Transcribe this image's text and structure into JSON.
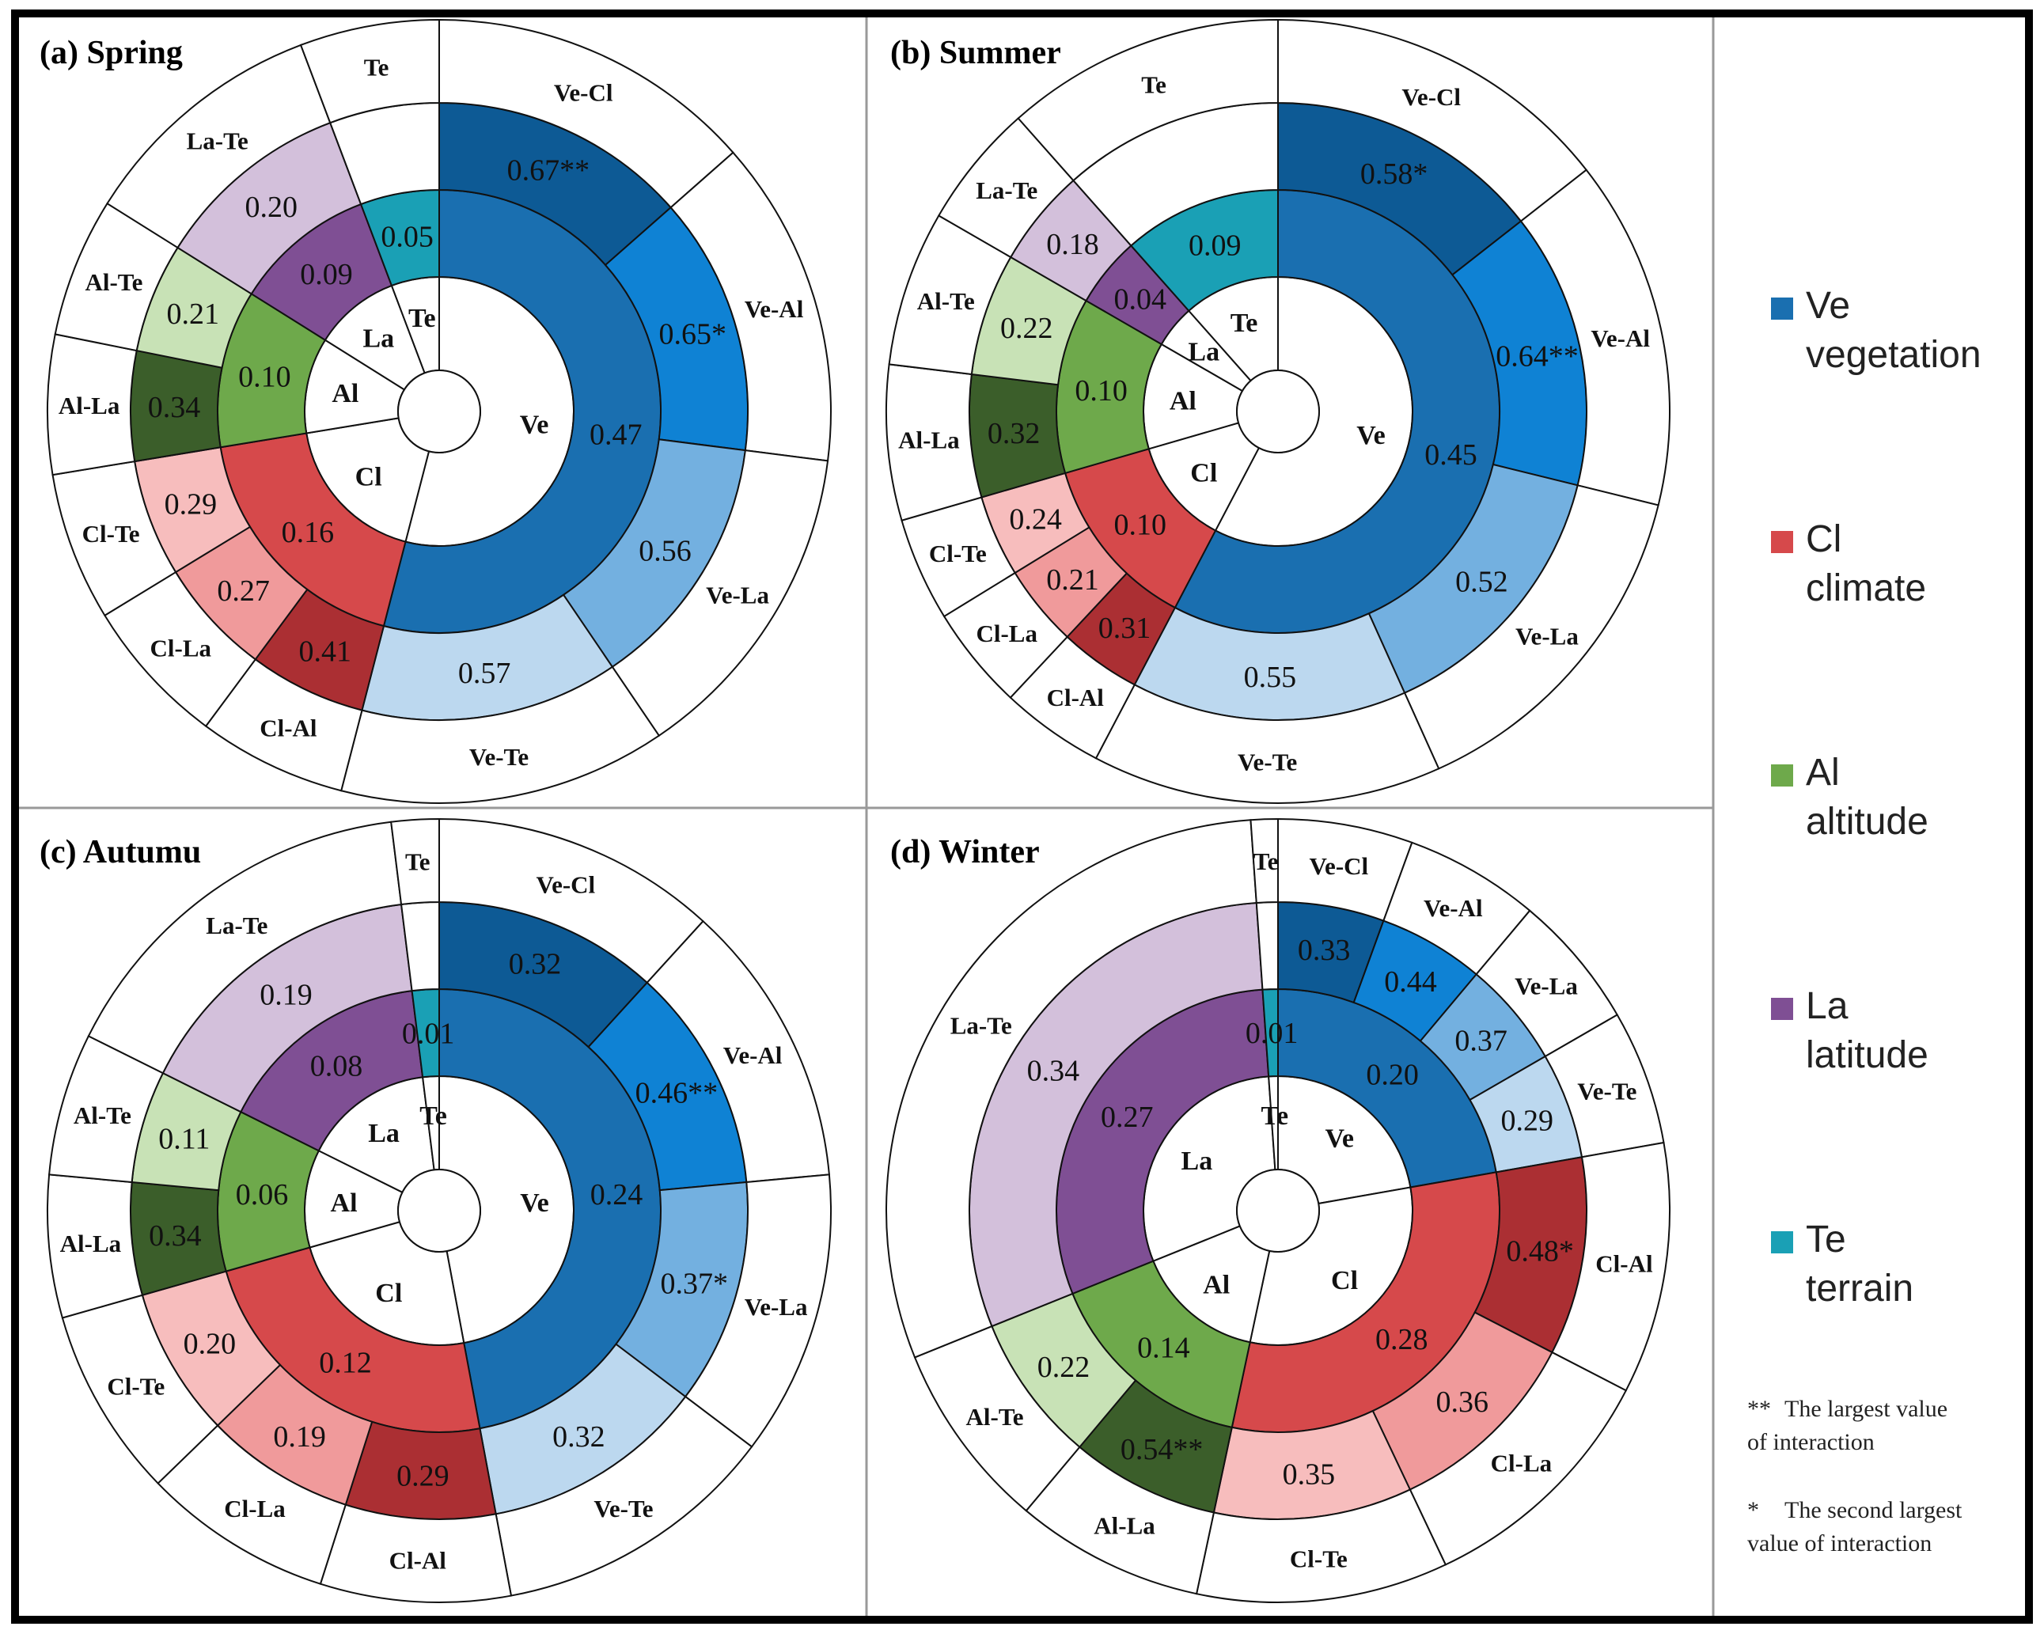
{
  "factors": [
    {
      "key": "Ve",
      "code": "Ve",
      "name": "vegetation",
      "color": "#1a6fb0"
    },
    {
      "key": "Cl",
      "code": "Cl",
      "name": "climate",
      "color": "#d6494b"
    },
    {
      "key": "Al",
      "code": "Al",
      "name": "altitude",
      "color": "#6ea94b"
    },
    {
      "key": "La",
      "code": "La",
      "name": "latitude",
      "color": "#7f4f94"
    },
    {
      "key": "Te",
      "code": "Te",
      "name": "terrain",
      "color": "#1aa0b5"
    }
  ],
  "notes": [
    {
      "mark": "**",
      "text_line1": "The largest value",
      "text_line2": "of interaction"
    },
    {
      "mark": "*",
      "text_line1": "The second largest",
      "text_line2": "value of interaction"
    }
  ],
  "chart_data": [
    {
      "type": "pie",
      "title": "(a) Spring",
      "single": [
        {
          "factor": "Ve",
          "label": "0.47",
          "value": 0.47
        },
        {
          "factor": "Cl",
          "label": "0.16",
          "value": 0.16
        },
        {
          "factor": "Al",
          "label": "0.10",
          "value": 0.1
        },
        {
          "factor": "La",
          "label": "0.09",
          "value": 0.09
        },
        {
          "factor": "Te",
          "label": "0.05",
          "value": 0.05
        }
      ],
      "interactions": [
        {
          "pair": "Ve-Cl",
          "label": "0.67**",
          "value": 0.67,
          "color": "#0d5a95"
        },
        {
          "pair": "Ve-Al",
          "label": "0.65*",
          "value": 0.65,
          "color": "#0f82d4"
        },
        {
          "pair": "Ve-La",
          "label": "0.56",
          "value": 0.56,
          "color": "#73b0e0"
        },
        {
          "pair": "Ve-Te",
          "label": "0.57",
          "value": 0.57,
          "color": "#bcd8ef"
        },
        {
          "pair": "Cl-Al",
          "label": "0.41",
          "value": 0.41,
          "color": "#ab2f33"
        },
        {
          "pair": "Cl-La",
          "label": "0.27",
          "value": 0.27,
          "color": "#f09a9b"
        },
        {
          "pair": "Cl-Te",
          "label": "0.29",
          "value": 0.29,
          "color": "#f7bdbd"
        },
        {
          "pair": "Al-La",
          "label": "0.34",
          "value": 0.34,
          "color": "#3b5e2a"
        },
        {
          "pair": "Al-Te",
          "label": "0.21",
          "value": 0.21,
          "color": "#c8e2b6"
        },
        {
          "pair": "La-Te",
          "label": "0.20",
          "value": 0.2,
          "color": "#d3c0db"
        },
        {
          "pair": "Te",
          "label": "",
          "value": 0.05,
          "color": "#ffffff"
        }
      ]
    },
    {
      "type": "pie",
      "title": "(b) Summer",
      "single": [
        {
          "factor": "Ve",
          "label": "0.45",
          "value": 0.45
        },
        {
          "factor": "Cl",
          "label": "0.10",
          "value": 0.1
        },
        {
          "factor": "Al",
          "label": "0.10",
          "value": 0.1
        },
        {
          "factor": "La",
          "label": "0.04",
          "value": 0.04
        },
        {
          "factor": "Te",
          "label": "0.09",
          "value": 0.09
        }
      ],
      "interactions": [
        {
          "pair": "Ve-Cl",
          "label": "0.58*",
          "value": 0.58,
          "color": "#0d5a95"
        },
        {
          "pair": "Ve-Al",
          "label": "0.64**",
          "value": 0.64,
          "color": "#0f82d4"
        },
        {
          "pair": "Ve-La",
          "label": "0.52",
          "value": 0.52,
          "color": "#73b0e0"
        },
        {
          "pair": "Ve-Te",
          "label": "0.55",
          "value": 0.55,
          "color": "#bcd8ef"
        },
        {
          "pair": "Cl-Al",
          "label": "0.31",
          "value": 0.31,
          "color": "#ab2f33"
        },
        {
          "pair": "Cl-La",
          "label": "0.21",
          "value": 0.21,
          "color": "#f09a9b"
        },
        {
          "pair": "Cl-Te",
          "label": "0.24",
          "value": 0.24,
          "color": "#f7bdbd"
        },
        {
          "pair": "Al-La",
          "label": "0.32",
          "value": 0.32,
          "color": "#3b5e2a"
        },
        {
          "pair": "Al-Te",
          "label": "0.22",
          "value": 0.22,
          "color": "#c8e2b6"
        },
        {
          "pair": "La-Te",
          "label": "0.18",
          "value": 0.18,
          "color": "#d3c0db"
        },
        {
          "pair": "Te",
          "label": "",
          "value": 0.09,
          "color": "#ffffff"
        }
      ]
    },
    {
      "type": "pie",
      "title": "(c) Autumu",
      "single": [
        {
          "factor": "Ve",
          "label": "0.24",
          "value": 0.24
        },
        {
          "factor": "Cl",
          "label": "0.12",
          "value": 0.12
        },
        {
          "factor": "Al",
          "label": "0.06",
          "value": 0.06
        },
        {
          "factor": "La",
          "label": "0.08",
          "value": 0.08
        },
        {
          "factor": "Te",
          "label": "0.01",
          "value": 0.01
        }
      ],
      "interactions": [
        {
          "pair": "Ve-Cl",
          "label": "0.32",
          "value": 0.32,
          "color": "#0d5a95"
        },
        {
          "pair": "Ve-Al",
          "label": "0.46**",
          "value": 0.46,
          "color": "#0f82d4"
        },
        {
          "pair": "Ve-La",
          "label": "0.37*",
          "value": 0.37,
          "color": "#73b0e0"
        },
        {
          "pair": "Ve-Te",
          "label": "0.32",
          "value": 0.32,
          "color": "#bcd8ef"
        },
        {
          "pair": "Cl-Al",
          "label": "0.29",
          "value": 0.29,
          "color": "#ab2f33"
        },
        {
          "pair": "Cl-La",
          "label": "0.19",
          "value": 0.19,
          "color": "#f09a9b"
        },
        {
          "pair": "Cl-Te",
          "label": "0.20",
          "value": 0.2,
          "color": "#f7bdbd"
        },
        {
          "pair": "Al-La",
          "label": "0.34",
          "value": 0.34,
          "color": "#3b5e2a"
        },
        {
          "pair": "Al-Te",
          "label": "0.11",
          "value": 0.11,
          "color": "#c8e2b6"
        },
        {
          "pair": "La-Te",
          "label": "0.19",
          "value": 0.19,
          "color": "#d3c0db"
        },
        {
          "pair": "Te",
          "label": "",
          "value": 0.01,
          "color": "#ffffff"
        }
      ]
    },
    {
      "type": "pie",
      "title": "(d) Winter",
      "single": [
        {
          "factor": "Ve",
          "label": "0.20",
          "value": 0.2
        },
        {
          "factor": "Cl",
          "label": "0.28",
          "value": 0.28
        },
        {
          "factor": "Al",
          "label": "0.14",
          "value": 0.14
        },
        {
          "factor": "La",
          "label": "0.27",
          "value": 0.27
        },
        {
          "factor": "Te",
          "label": "0.01",
          "value": 0.01
        }
      ],
      "interactions": [
        {
          "pair": "Ve-Cl",
          "label": "0.33",
          "value": 0.33,
          "color": "#0d5a95"
        },
        {
          "pair": "Ve-Al",
          "label": "0.44",
          "value": 0.44,
          "color": "#0f82d4"
        },
        {
          "pair": "Ve-La",
          "label": "0.37",
          "value": 0.37,
          "color": "#73b0e0"
        },
        {
          "pair": "Ve-Te",
          "label": "0.29",
          "value": 0.29,
          "color": "#bcd8ef"
        },
        {
          "pair": "Cl-Al",
          "label": "0.48*",
          "value": 0.48,
          "color": "#ab2f33"
        },
        {
          "pair": "Cl-La",
          "label": "0.36",
          "value": 0.36,
          "color": "#f09a9b"
        },
        {
          "pair": "Cl-Te",
          "label": "0.35",
          "value": 0.35,
          "color": "#f7bdbd"
        },
        {
          "pair": "Al-La",
          "label": "0.54**",
          "value": 0.54,
          "color": "#3b5e2a"
        },
        {
          "pair": "Al-Te",
          "label": "0.22",
          "value": 0.22,
          "color": "#c8e2b6"
        },
        {
          "pair": "La-Te",
          "label": "0.34",
          "value": 0.34,
          "color": "#d3c0db"
        },
        {
          "pair": "Te",
          "label": "",
          "value": 0.01,
          "color": "#ffffff"
        }
      ]
    }
  ]
}
